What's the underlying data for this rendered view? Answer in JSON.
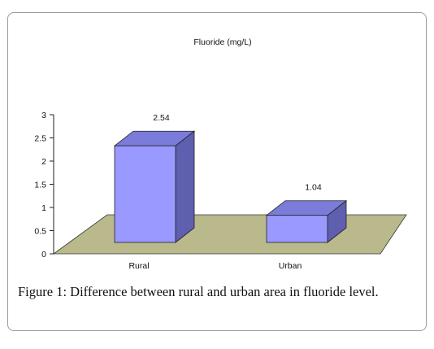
{
  "caption": {
    "label": "Figure 1:",
    "text": " Difference between rural and urban area in fluoride level."
  },
  "chart_data": {
    "type": "bar",
    "title": "Fluoride (mg/L)",
    "categories": [
      "Rural",
      "Urban"
    ],
    "values": [
      2.54,
      1.04
    ],
    "data_labels": [
      "2.54",
      "1.04"
    ],
    "yticks": [
      "0",
      "0.5",
      "1",
      "1.5",
      "2",
      "2.5",
      "3"
    ],
    "ylim": [
      0,
      3
    ],
    "xlabel": "",
    "ylabel": "",
    "grid": false,
    "legend": "none",
    "bar_color": "#9999ff",
    "bar_side_color": "#5f5fb0",
    "bar_top_color": "#7b7bd9",
    "floor_color": "#b9b98c"
  }
}
